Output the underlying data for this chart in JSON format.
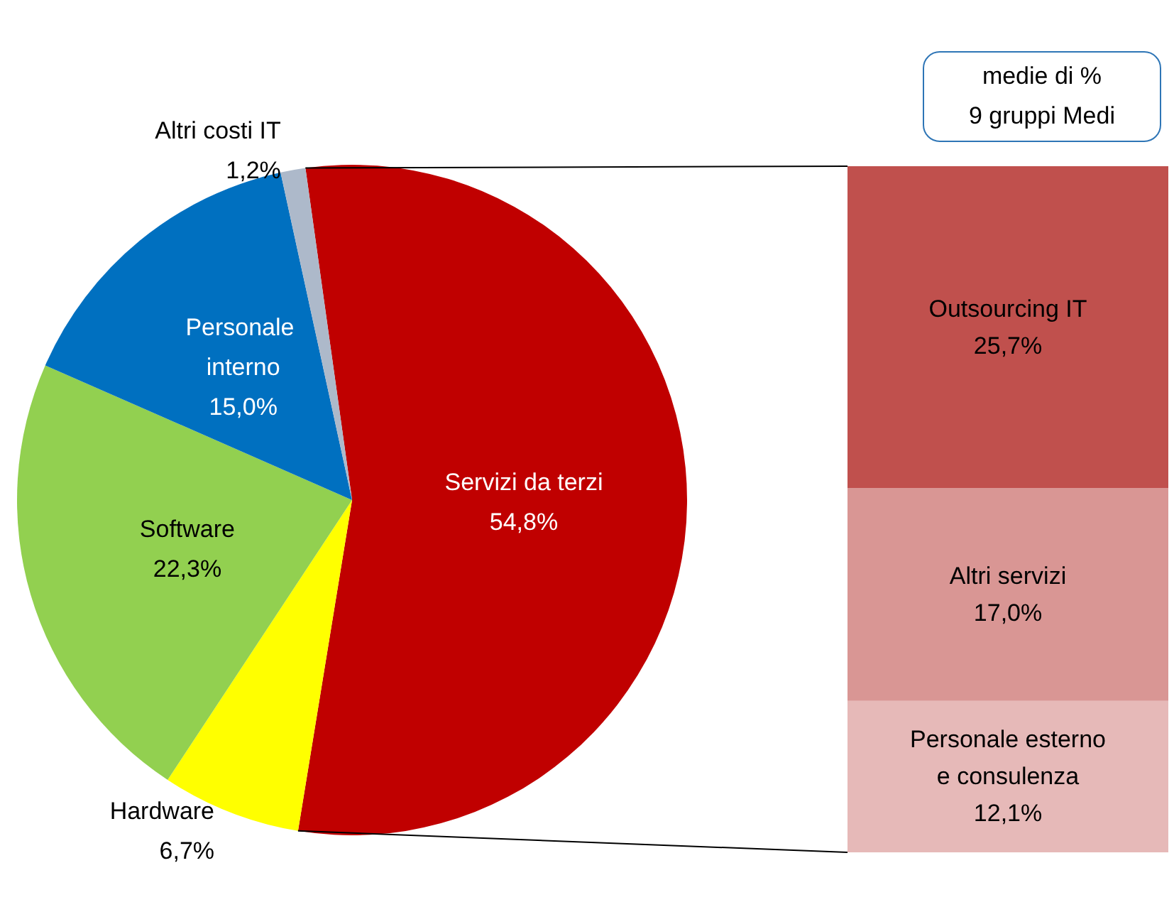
{
  "chart_data": [
    {
      "type": "pie",
      "categories": [
        "Servizi da terzi",
        "Hardware",
        "Software",
        "Personale interno",
        "Altri costi IT"
      ],
      "values": [
        54.8,
        6.7,
        22.3,
        15.0,
        1.2
      ],
      "colors": [
        "#c00000",
        "#ffff00",
        "#92d050",
        "#0070c0",
        "#adb9ca"
      ],
      "value_labels": [
        "54,8%",
        "6,7%",
        "22,3%",
        "15,0%",
        "1,2%"
      ],
      "legend": false
    },
    {
      "type": "bar",
      "stacked": true,
      "categories": [
        null
      ],
      "annotations": [
        "medie di %",
        "9 gruppi Medi"
      ],
      "legend": false,
      "series": [
        {
          "name": "Personale esterno e consulenza",
          "color": "#e6b9b8",
          "values": [
            12.1
          ],
          "value_labels": [
            "12,1%"
          ]
        },
        {
          "name": "Altri servizi",
          "color": "#d99694",
          "values": [
            17.0
          ],
          "value_labels": [
            "17,0%"
          ]
        },
        {
          "name": "Outsourcing IT",
          "color": "#c0504d",
          "values": [
            25.7
          ],
          "value_labels": [
            "25,7%"
          ]
        }
      ]
    }
  ]
}
